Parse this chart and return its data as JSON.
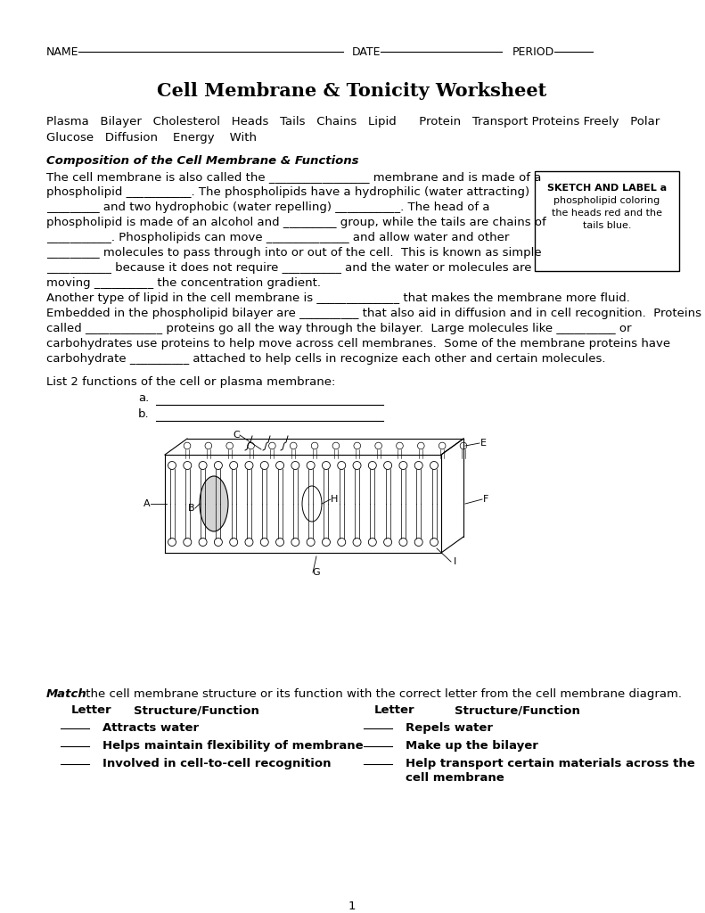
{
  "title": "Cell Membrane & Tonicity Worksheet",
  "bg_color": "#ffffff",
  "word_bank_line1": "Plasma   Bilayer   Cholesterol   Heads   Tails   Chains   Lipid      Protein   Transport Proteins Freely   Polar",
  "word_bank_line2": "Glucose   Diffusion    Energy    With",
  "section1_title": "Composition of the Cell Membrane & Functions",
  "para1_lines": [
    "The cell membrane is also called the _________________ membrane and is made of a",
    "phospholipid ___________. The phospholipids have a hydrophilic (water attracting)",
    "_________ and two hydrophobic (water repelling) ___________. The head of a",
    "phospholipid is made of an alcohol and _________ group, while the tails are chains of",
    "___________. Phospholipids can move ______________ and allow water and other",
    "_________ molecules to pass through into or out of the cell.  This is known as simple",
    "___________ because it does not require __________ and the water or molecules are",
    "moving __________ the concentration gradient."
  ],
  "sketch_lines": [
    "SKETCH AND LABEL a",
    "phospholipid coloring",
    "the heads red and the",
    "tails blue."
  ],
  "sketch_bold_line": 0,
  "para2_lines": [
    "Another type of lipid in the cell membrane is ______________ that makes the membrane more fluid.",
    "Embedded in the phospholipid bilayer are __________ that also aid in diffusion and in cell recognition.  Proteins",
    "called _____________ proteins go all the way through the bilayer.  Large molecules like __________ or",
    "carbohydrates use proteins to help move across cell membranes.  Some of the membrane proteins have",
    "carbohydrate __________ attached to help cells in recognize each other and certain molecules."
  ],
  "list_intro": "List 2 functions of the cell or plasma membrane:",
  "list_a_label": "a.",
  "list_b_label": "b.",
  "list_line": "________________________________________",
  "match_intro_bold": "Match",
  "match_intro_rest": " the cell membrane structure or its function with the correct letter from the cell membrane diagram.",
  "match_headers": [
    "Letter",
    "Structure/Function",
    "Letter",
    "Structure/Function"
  ],
  "match_left": [
    "Attracts water",
    "Helps maintain flexibility of membrane",
    "Involved in cell-to-cell recognition"
  ],
  "match_right": [
    "Repels water",
    "Make up the bilayer",
    "Help transport certain materials across the\ncell membrane"
  ],
  "page_number": "1"
}
